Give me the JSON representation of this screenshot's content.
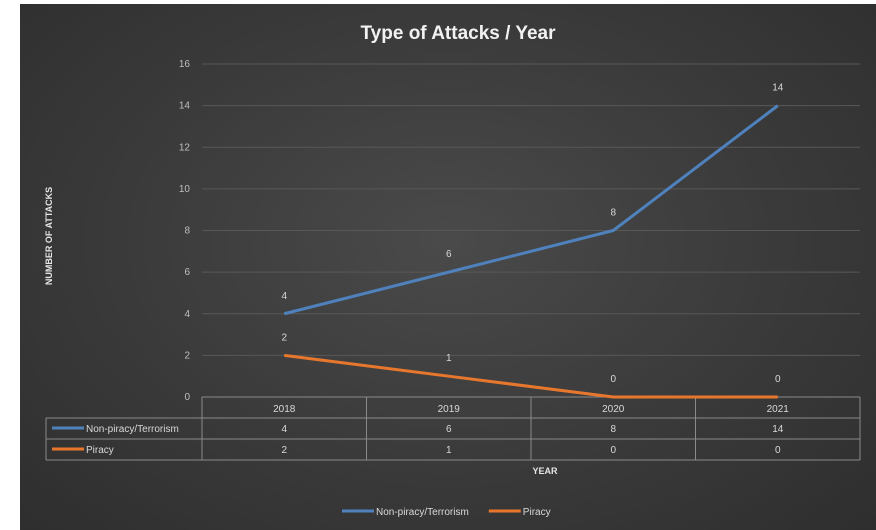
{
  "chart_data": {
    "type": "line",
    "title": "Type of Attacks / Year",
    "xlabel": "YEAR",
    "ylabel": "NUMBER OF ATTACKS",
    "categories": [
      "2018",
      "2019",
      "2020",
      "2021"
    ],
    "ylim": [
      0,
      16
    ],
    "yticks": [
      0,
      2,
      4,
      6,
      8,
      10,
      12,
      14,
      16
    ],
    "ytick_labels": [
      "0",
      "2",
      "4",
      "6",
      "8",
      "10",
      "12",
      "14",
      "16"
    ],
    "grid": true,
    "legend": "bottom",
    "data_table": true,
    "series": [
      {
        "name": "Non-piracy/Terrorism",
        "values": [
          4,
          6,
          8,
          14
        ],
        "color": "#4f81bd"
      },
      {
        "name": "Piracy",
        "values": [
          2,
          1,
          0,
          0
        ],
        "color": "#e8772e"
      }
    ]
  }
}
